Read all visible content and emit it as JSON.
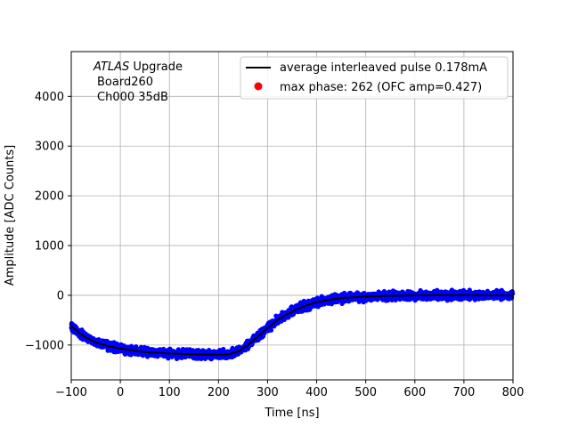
{
  "chart_data": {
    "type": "scatter",
    "title": "",
    "xlabel": "Time [ns]",
    "ylabel": "Amplitude [ADC Counts]",
    "xlim": [
      -100,
      800
    ],
    "ylim": [
      -1700,
      4900
    ],
    "xticks": [
      -100,
      0,
      100,
      200,
      300,
      400,
      500,
      600,
      700,
      800
    ],
    "xtick_labels": [
      "−100",
      "0",
      "100",
      "200",
      "300",
      "400",
      "500",
      "600",
      "700",
      "800"
    ],
    "yticks": [
      -1000,
      0,
      1000,
      2000,
      3000,
      4000
    ],
    "ytick_labels": [
      "−1000",
      "0",
      "1000",
      "2000",
      "3000",
      "4000"
    ],
    "grid": true,
    "legend_position": "top-right",
    "annotation": {
      "italic": "ATLAS",
      "rest": " Upgrade",
      "line2": "Board260",
      "line3": "Ch000 35dB"
    },
    "colors": {
      "scatter": "#0000ff",
      "average_line": "#000000",
      "max_phase_marker": "#ff0000"
    },
    "series": [
      {
        "name": "average interleaved pulse 0.178mA",
        "kind": "line",
        "x": [
          -100,
          -75,
          -50,
          -25,
          0,
          25,
          50,
          75,
          100,
          125,
          150,
          175,
          200,
          220,
          240,
          260,
          280,
          300,
          320,
          340,
          360,
          380,
          400,
          425,
          450,
          475,
          500,
          550,
          600,
          650,
          700,
          750,
          800
        ],
        "y": [
          -620,
          -820,
          -950,
          -1020,
          -1070,
          -1110,
          -1140,
          -1160,
          -1170,
          -1180,
          -1185,
          -1190,
          -1195,
          -1190,
          -1130,
          -1000,
          -830,
          -660,
          -500,
          -380,
          -280,
          -200,
          -140,
          -90,
          -60,
          -40,
          -25,
          -10,
          0,
          5,
          5,
          0,
          0
        ]
      },
      {
        "name": "max phase: 262 (OFC amp=0.427)",
        "kind": "marker",
        "x": [],
        "y": []
      },
      {
        "name": "",
        "kind": "scatter-band",
        "spread": 90
      }
    ]
  }
}
